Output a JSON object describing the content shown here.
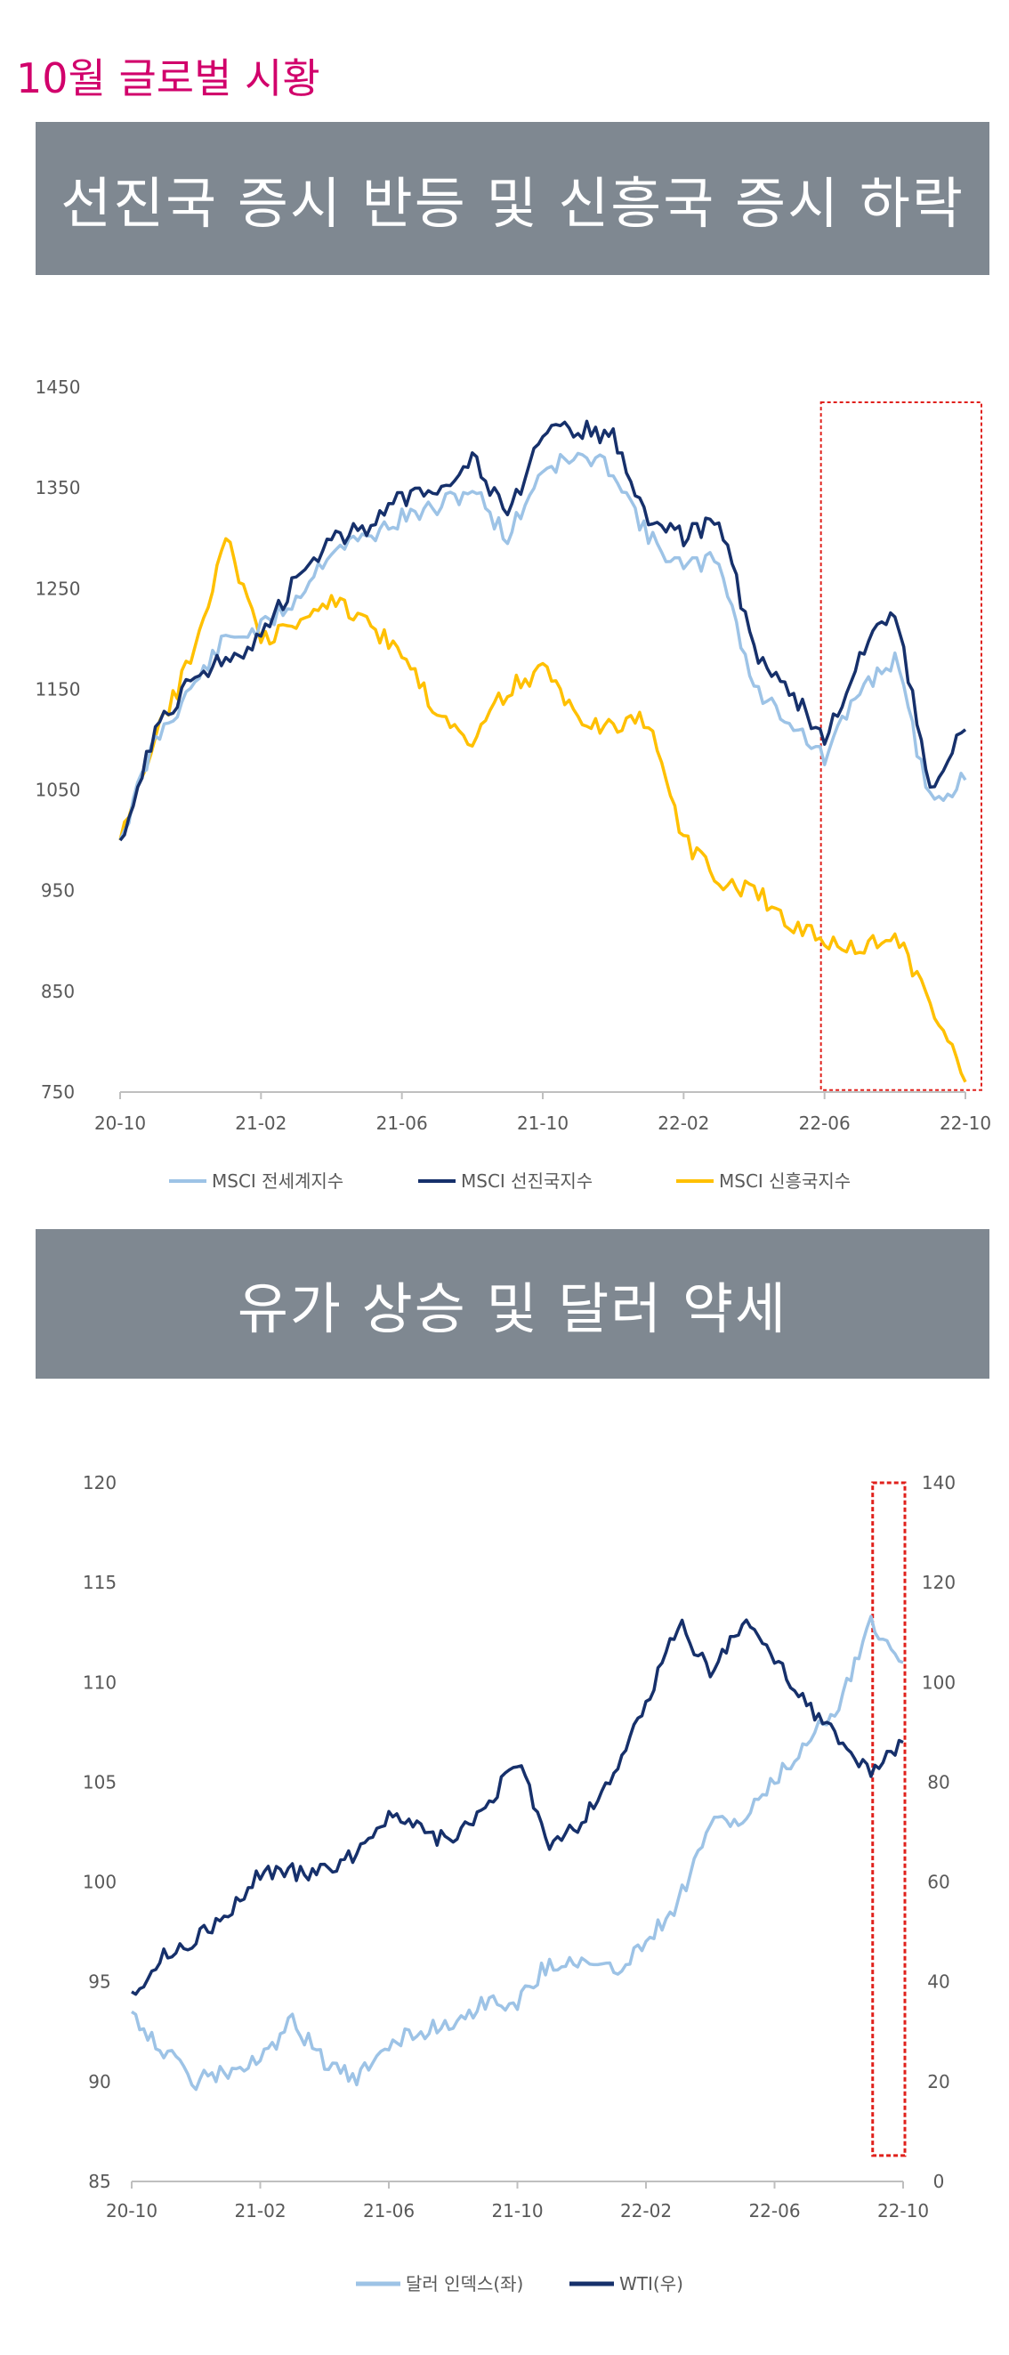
{
  "page_title": "10월 글로벌 시황",
  "section1": {
    "title": "선진국 증시 반등 및 신흥국 증시 하락"
  },
  "section2": {
    "title": "유가 상승 및 달러 약세"
  },
  "colors": {
    "accent": "#d1006b",
    "banner": "#7f8891",
    "light_blue": "#9dc3e6",
    "navy": "#16306b",
    "gold": "#ffc000",
    "highlight_box": "#e0201b"
  },
  "chart_data": [
    {
      "type": "line",
      "title": "",
      "x_ticks": [
        "20-10",
        "21-02",
        "21-06",
        "21-10",
        "22-02",
        "22-06",
        "22-10"
      ],
      "y_ticks": [
        1450,
        1350,
        1250,
        1150,
        1050,
        950,
        850,
        750
      ],
      "ylim": [
        750,
        1450
      ],
      "legend_position": "bottom",
      "highlight_range": [
        "22-06",
        "22-10"
      ],
      "series": [
        {
          "name": "MSCI 전세계지수",
          "color": "#9dc3e6",
          "x": [
            "20-10",
            "20-11",
            "20-12",
            "21-01",
            "21-02",
            "21-03",
            "21-04",
            "21-05",
            "21-06",
            "21-07",
            "21-08",
            "21-09",
            "21-10",
            "21-11",
            "21-12",
            "22-01",
            "22-02",
            "22-03",
            "22-04",
            "22-05",
            "22-06",
            "22-07",
            "22-08",
            "22-09",
            "22-10"
          ],
          "values": [
            1000,
            1100,
            1150,
            1200,
            1210,
            1240,
            1290,
            1300,
            1320,
            1330,
            1350,
            1300,
            1370,
            1380,
            1370,
            1300,
            1270,
            1280,
            1150,
            1120,
            1080,
            1150,
            1180,
            1040,
            1060
          ]
        },
        {
          "name": "MSCI 선진국지수",
          "color": "#16306b",
          "x": [
            "20-10",
            "20-11",
            "20-12",
            "21-01",
            "21-02",
            "21-03",
            "21-04",
            "21-05",
            "21-06",
            "21-07",
            "21-08",
            "21-09",
            "21-10",
            "21-11",
            "21-12",
            "22-01",
            "22-02",
            "22-03",
            "22-04",
            "22-05",
            "22-06",
            "22-07",
            "22-08",
            "22-09",
            "22-10"
          ],
          "values": [
            1000,
            1110,
            1160,
            1180,
            1200,
            1260,
            1300,
            1310,
            1340,
            1350,
            1380,
            1320,
            1400,
            1410,
            1400,
            1320,
            1300,
            1320,
            1190,
            1150,
            1100,
            1180,
            1230,
            1050,
            1110
          ]
        },
        {
          "name": "MSCI 신흥국지수",
          "color": "#ffc000",
          "x": [
            "20-10",
            "20-11",
            "20-12",
            "21-01",
            "21-02",
            "21-03",
            "21-04",
            "21-05",
            "21-06",
            "21-07",
            "21-08",
            "21-09",
            "21-10",
            "21-11",
            "21-12",
            "22-01",
            "22-02",
            "22-03",
            "22-04",
            "22-05",
            "22-06",
            "22-07",
            "22-08",
            "22-09",
            "22-10"
          ],
          "values": [
            1000,
            1100,
            1180,
            1300,
            1200,
            1210,
            1240,
            1220,
            1180,
            1130,
            1100,
            1150,
            1170,
            1120,
            1110,
            1120,
            1000,
            960,
            950,
            920,
            900,
            890,
            910,
            840,
            760
          ]
        }
      ]
    },
    {
      "type": "line",
      "title": "",
      "x_ticks": [
        "20-10",
        "21-02",
        "21-06",
        "21-10",
        "22-02",
        "22-06",
        "22-10"
      ],
      "y_left_ticks": [
        120,
        115,
        110,
        105,
        100,
        95,
        90,
        85
      ],
      "y_right_ticks": [
        140,
        120,
        100,
        80,
        60,
        40,
        20,
        0
      ],
      "ylim_left": [
        85,
        120
      ],
      "ylim_right": [
        0,
        140
      ],
      "legend_position": "bottom",
      "highlight_range": [
        "22-08",
        "22-10"
      ],
      "series": [
        {
          "name": "달러 인덱스(좌)",
          "axis": "left",
          "color": "#9dc3e6",
          "x": [
            "20-10",
            "20-11",
            "20-12",
            "21-01",
            "21-02",
            "21-03",
            "21-04",
            "21-05",
            "21-06",
            "21-07",
            "21-08",
            "21-09",
            "21-10",
            "21-11",
            "21-12",
            "22-01",
            "22-02",
            "22-03",
            "22-04",
            "22-05",
            "22-06",
            "22-07",
            "22-08",
            "22-09",
            "22-10"
          ],
          "values": [
            93.5,
            91.5,
            90,
            90.5,
            91,
            93,
            91,
            90,
            92,
            92.5,
            93,
            94,
            94,
            96,
            96,
            95.5,
            97,
            99,
            103,
            103,
            105,
            107,
            109,
            113,
            111
          ]
        },
        {
          "name": "WTI(우)",
          "axis": "right",
          "color": "#16306b",
          "x": [
            "20-10",
            "20-11",
            "20-12",
            "21-01",
            "21-02",
            "21-03",
            "21-04",
            "21-05",
            "21-06",
            "21-07",
            "21-08",
            "21-09",
            "21-10",
            "21-11",
            "21-12",
            "22-01",
            "22-02",
            "22-03",
            "22-04",
            "22-05",
            "22-06",
            "22-07",
            "22-08",
            "22-09",
            "22-10"
          ],
          "values": [
            38,
            45,
            49,
            53,
            62,
            62,
            62,
            66,
            74,
            70,
            68,
            75,
            84,
            68,
            72,
            82,
            95,
            112,
            102,
            112,
            105,
            96,
            88,
            82,
            88
          ]
        }
      ]
    }
  ]
}
